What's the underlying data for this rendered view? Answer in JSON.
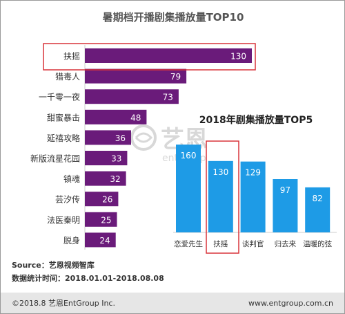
{
  "colors": {
    "main_bar": "#6a1b7a",
    "sub_bar": "#1e9be6",
    "highlight": "#d9343a",
    "footer_bg": "#e6e6e6",
    "watermark": "#d8d8d8",
    "text": "#333333"
  },
  "watermark": {
    "cn": "艺恩",
    "en": "entgroup"
  },
  "chart_data": [
    {
      "type": "bar",
      "orientation": "horizontal",
      "title": "暑期档开播剧集播放量TOP10",
      "categories": [
        "扶摇",
        "猎毒人",
        "一千零一夜",
        "甜蜜暴击",
        "延禧攻略",
        "新版流星花园",
        "镇魂",
        "芸汐传",
        "法医秦明",
        "脱身"
      ],
      "values": [
        130,
        79,
        73,
        48,
        36,
        33,
        32,
        26,
        25,
        24
      ],
      "highlight": "扶摇",
      "xlim": [
        0,
        130
      ],
      "grid": false,
      "legend": "none",
      "data_labels": true
    },
    {
      "type": "bar",
      "orientation": "vertical",
      "title": "2018年剧集播放量TOP5",
      "categories": [
        "恋爱先生",
        "扶摇",
        "谈判官",
        "归去来",
        "温暖的弦"
      ],
      "values": [
        160,
        130,
        129,
        97,
        82
      ],
      "highlight": "扶摇",
      "ylim": [
        0,
        160
      ],
      "grid": false,
      "legend": "none",
      "data_labels": true
    }
  ],
  "source": {
    "line1": "Source：艺恩视频智库",
    "line2": "数据统计时间：2018.01.01-2018.08.08"
  },
  "footer": {
    "left": "©2018.8 艺恩EntGroup Inc.",
    "right": "www.entgroup.com.cn"
  }
}
